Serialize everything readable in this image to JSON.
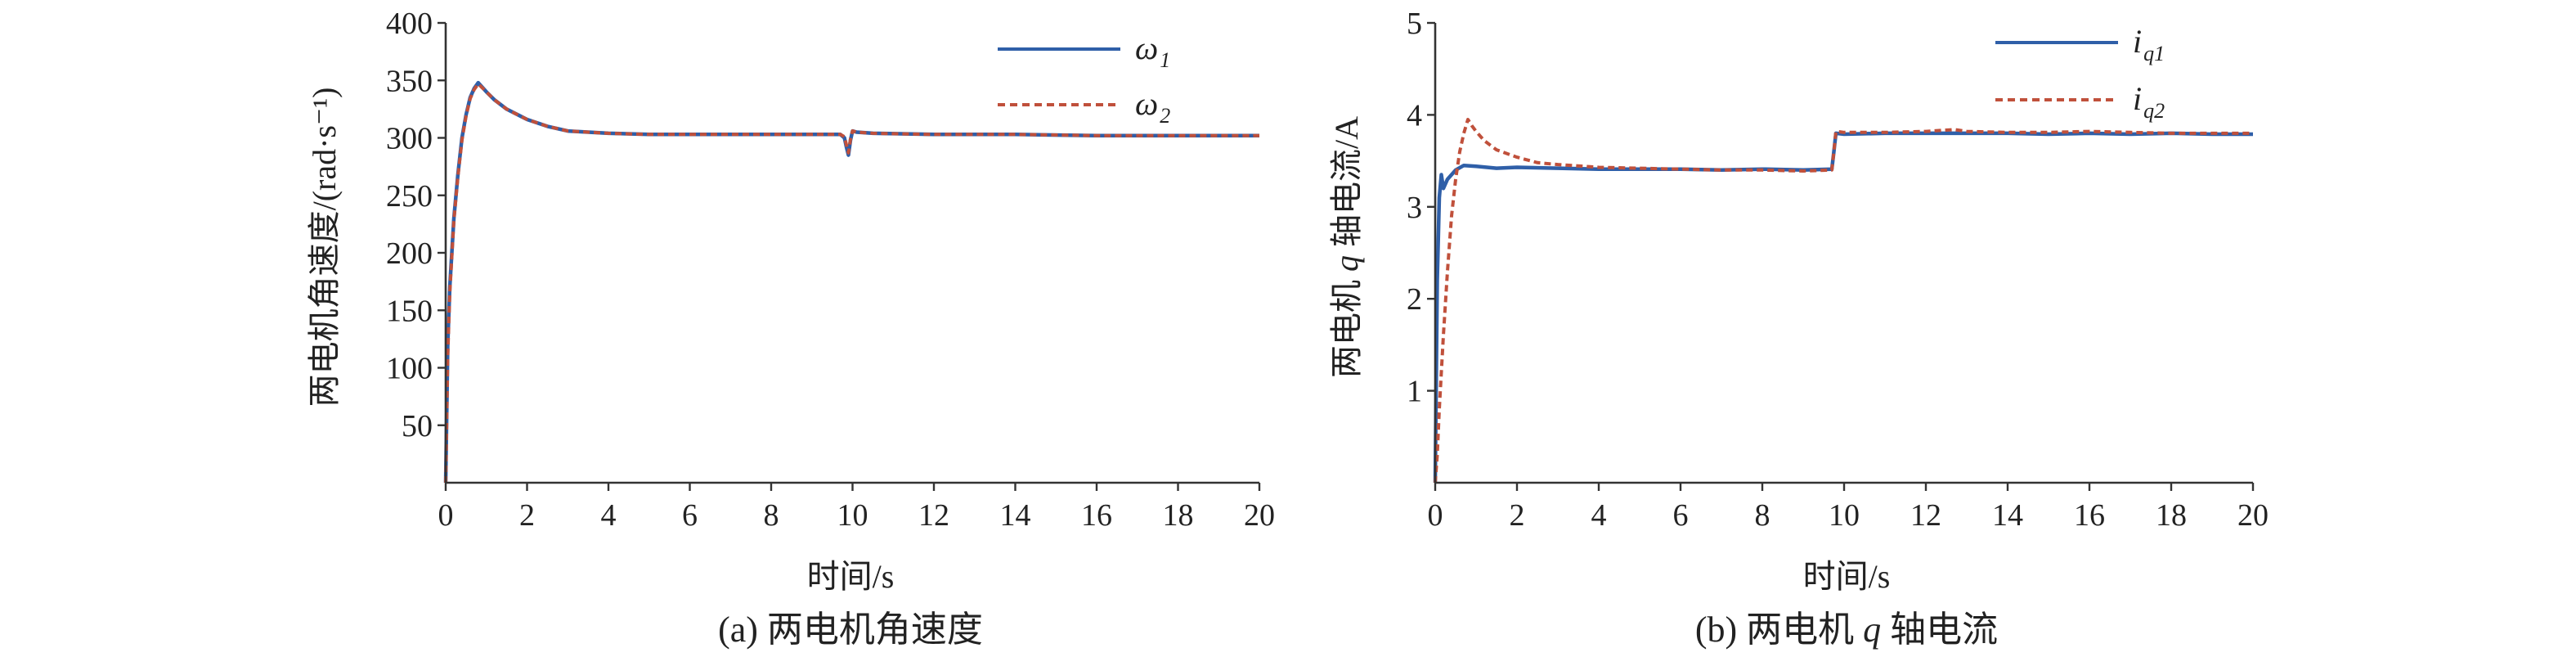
{
  "chart_data": [
    {
      "type": "line",
      "caption": "(a) 两电机角速度",
      "xlabel": "时间/s",
      "ylabel": "两电机角速度/(rad·s⁻¹)",
      "xlim": [
        0,
        20
      ],
      "ylim": [
        0,
        400
      ],
      "xticks": [
        "0",
        "2",
        "4",
        "6",
        "8",
        "10",
        "12",
        "14",
        "16",
        "18",
        "20"
      ],
      "yticks": [
        "50",
        "100",
        "150",
        "200",
        "250",
        "300",
        "350",
        "400"
      ],
      "legend_position": "top-right",
      "series": [
        {
          "name": "ω1",
          "legend_main": "ω",
          "legend_sub": "1",
          "color": "#2f5fa8",
          "style": "solid",
          "x": [
            0,
            0.05,
            0.1,
            0.2,
            0.3,
            0.4,
            0.5,
            0.6,
            0.7,
            0.8,
            1.0,
            1.2,
            1.5,
            2.0,
            2.5,
            3.0,
            4.0,
            5.0,
            6.0,
            7.0,
            8.0,
            9.0,
            9.7,
            9.8,
            9.85,
            9.9,
            9.95,
            10.0,
            10.1,
            10.5,
            12.0,
            14.0,
            16.0,
            18.0,
            20.0
          ],
          "y": [
            0,
            120,
            170,
            230,
            268,
            300,
            320,
            335,
            343,
            348,
            340,
            333,
            325,
            316,
            310,
            306,
            304,
            303,
            303,
            303,
            303,
            303,
            303,
            300,
            292,
            285,
            298,
            306,
            305,
            304,
            303,
            303,
            302,
            302,
            302
          ]
        },
        {
          "name": "ω2",
          "legend_main": "ω",
          "legend_sub": "2",
          "color": "#c0503b",
          "style": "dashed",
          "x": [
            0,
            0.05,
            0.1,
            0.2,
            0.3,
            0.4,
            0.5,
            0.6,
            0.7,
            0.8,
            1.0,
            1.2,
            1.5,
            2.0,
            2.5,
            3.0,
            4.0,
            5.0,
            6.0,
            7.0,
            8.0,
            9.0,
            9.7,
            9.8,
            9.85,
            9.9,
            9.95,
            10.0,
            10.1,
            10.5,
            12.0,
            14.0,
            16.0,
            18.0,
            20.0
          ],
          "y": [
            0,
            110,
            165,
            228,
            266,
            298,
            319,
            334,
            342,
            347,
            340,
            333,
            325,
            316,
            310,
            306,
            304,
            303,
            303,
            303,
            303,
            303,
            303,
            301,
            294,
            287,
            299,
            306,
            305,
            304,
            303,
            303,
            302,
            302,
            302
          ]
        }
      ]
    },
    {
      "type": "line",
      "caption_parts": [
        "(b) 两电机 ",
        "q",
        " 轴电流"
      ],
      "xlabel": "时间/s",
      "ylabel_parts": [
        "两电机 ",
        "q",
        " 轴电流/A"
      ],
      "xlim": [
        0,
        20
      ],
      "ylim": [
        0,
        5
      ],
      "xticks": [
        "0",
        "2",
        "4",
        "6",
        "8",
        "10",
        "12",
        "14",
        "16",
        "18",
        "20"
      ],
      "yticks": [
        "1",
        "2",
        "3",
        "4",
        "5"
      ],
      "legend_position": "top-right",
      "series": [
        {
          "name": "iq1",
          "legend_main": "i",
          "legend_sub": "q1",
          "color": "#2f5fa8",
          "style": "solid",
          "x": [
            0,
            0.05,
            0.1,
            0.15,
            0.2,
            0.3,
            0.4,
            0.5,
            0.7,
            1.0,
            1.5,
            2.0,
            3.0,
            4.0,
            5.0,
            6.0,
            7.0,
            8.0,
            9.0,
            9.7,
            9.75,
            9.8,
            10.0,
            11.0,
            12.0,
            13.0,
            14.0,
            15.0,
            16.0,
            17.0,
            18.0,
            19.0,
            20.0
          ],
          "y": [
            0,
            2.2,
            3.1,
            3.35,
            3.2,
            3.3,
            3.35,
            3.4,
            3.45,
            3.44,
            3.42,
            3.43,
            3.42,
            3.41,
            3.41,
            3.41,
            3.4,
            3.41,
            3.4,
            3.41,
            3.6,
            3.8,
            3.79,
            3.8,
            3.8,
            3.8,
            3.8,
            3.79,
            3.8,
            3.79,
            3.8,
            3.79,
            3.79
          ]
        },
        {
          "name": "iq2",
          "legend_main": "i",
          "legend_sub": "q2",
          "color": "#c0503b",
          "style": "dashed",
          "x": [
            0,
            0.05,
            0.1,
            0.2,
            0.3,
            0.4,
            0.5,
            0.6,
            0.7,
            0.8,
            0.9,
            1.0,
            1.2,
            1.5,
            2.0,
            2.5,
            3.0,
            4.0,
            5.0,
            6.0,
            7.0,
            8.0,
            9.0,
            9.7,
            9.75,
            9.8,
            10.0,
            11.0,
            12.0,
            12.7,
            13.0,
            14.0,
            15.0,
            16.0,
            17.0,
            18.0,
            19.0,
            20.0
          ],
          "y": [
            0,
            0.3,
            0.8,
            1.6,
            2.3,
            2.9,
            3.3,
            3.6,
            3.8,
            3.95,
            3.88,
            3.82,
            3.72,
            3.62,
            3.54,
            3.48,
            3.46,
            3.43,
            3.42,
            3.41,
            3.4,
            3.4,
            3.39,
            3.4,
            3.6,
            3.82,
            3.81,
            3.81,
            3.82,
            3.84,
            3.82,
            3.81,
            3.81,
            3.82,
            3.81,
            3.8,
            3.8,
            3.8
          ]
        }
      ]
    }
  ]
}
